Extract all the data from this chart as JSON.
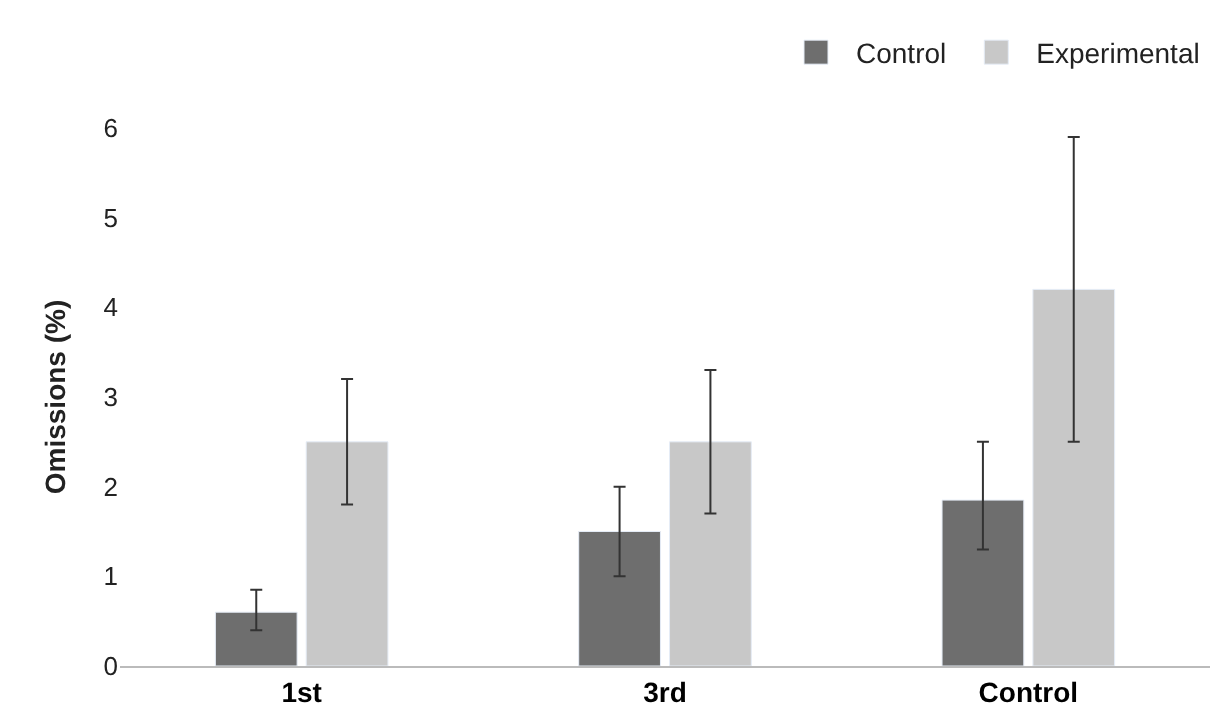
{
  "chart_data": {
    "type": "bar",
    "ylabel": "Omissions (%)",
    "categories": [
      "1st",
      "3rd",
      "Control"
    ],
    "series": [
      {
        "name": "Control",
        "color": "#6e6e6e",
        "values": [
          0.6,
          1.5,
          1.85
        ],
        "errors": [
          [
            0.4,
            0.85
          ],
          [
            1.0,
            2.0
          ],
          [
            1.3,
            2.5
          ]
        ]
      },
      {
        "name": "Experimental",
        "color": "#c8c8c8",
        "values": [
          2.5,
          2.5,
          4.2
        ],
        "errors": [
          [
            1.8,
            3.2
          ],
          [
            1.7,
            3.3
          ],
          [
            2.5,
            5.9
          ]
        ]
      }
    ],
    "ylim": [
      0,
      6
    ],
    "yticks": [
      0,
      1,
      2,
      3,
      4,
      5,
      6
    ],
    "legend": "top right"
  }
}
